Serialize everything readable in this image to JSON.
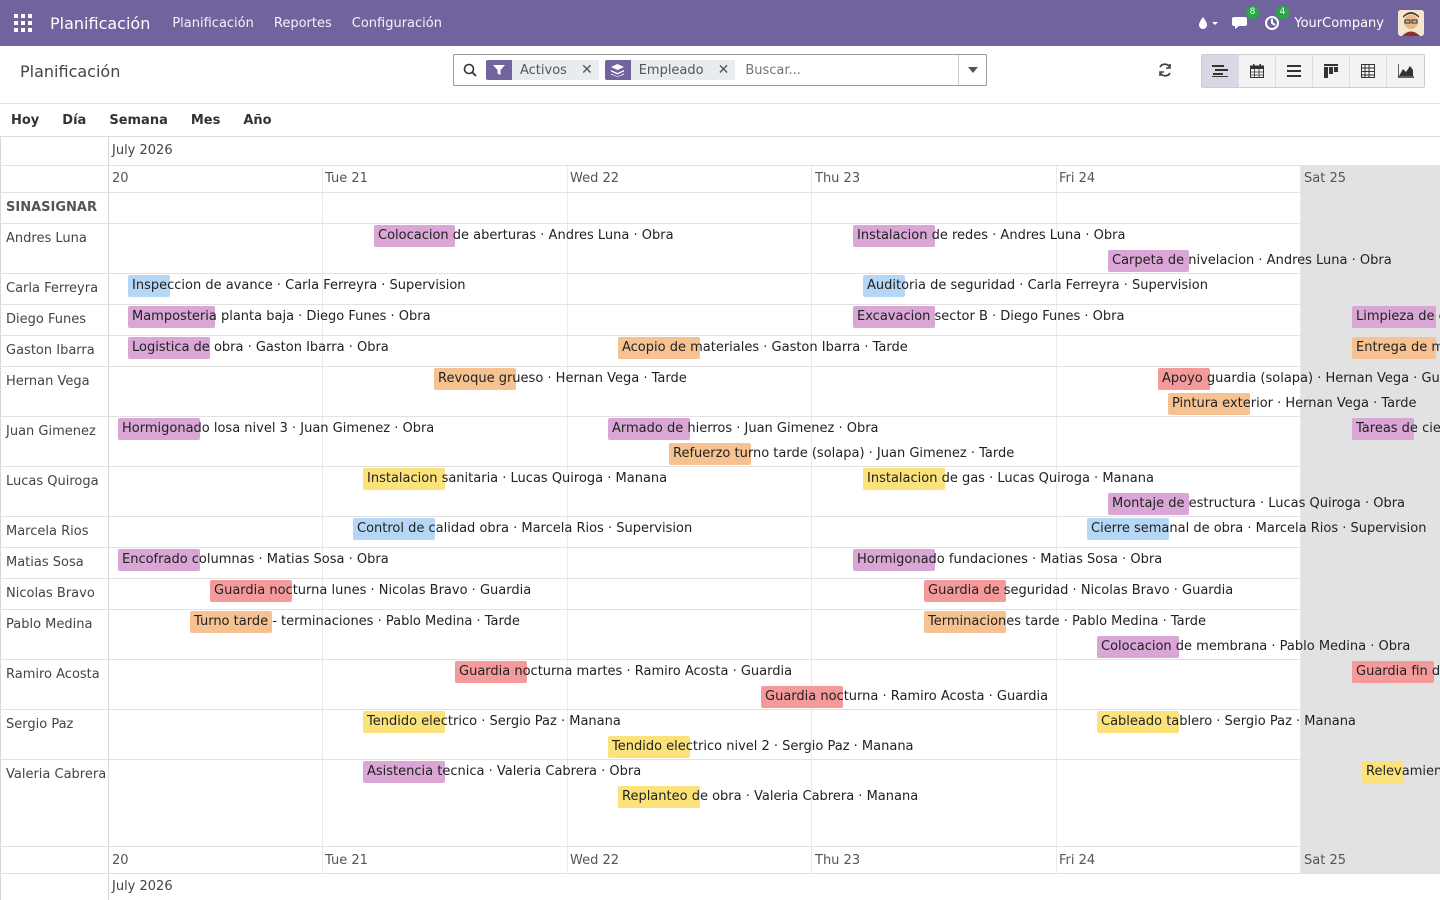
{
  "navbar": {
    "brand": "Planificación",
    "menu": [
      "Planificación",
      "Reportes",
      "Configuración"
    ],
    "company": "YourCompany",
    "messages_badge": "8",
    "activities_badge": "4",
    "color": "#71639e"
  },
  "control_panel": {
    "title": "Planificación",
    "facets": [
      {
        "icon": "filter-icon",
        "label": "Activos"
      },
      {
        "icon": "layers-icon",
        "label": "Empleado"
      }
    ],
    "search_placeholder": "Buscar...",
    "views": [
      "gantt-icon",
      "calendar-icon",
      "list-icon",
      "kanban-icon",
      "pivot-icon",
      "graph-icon"
    ],
    "active_view": "gantt-icon"
  },
  "scales": [
    "Hoy",
    "Día",
    "Semana",
    "Mes",
    "Año"
  ],
  "gantt": {
    "month": "July 2026",
    "days": [
      "20",
      "Tue 21",
      "Wed 22",
      "Thu 23",
      "Fri 24",
      "Sat 25"
    ],
    "rows": [
      "SINASIGNAR",
      "Andres Luna",
      "Carla Ferreyra",
      "Diego Funes",
      "Gaston Ibarra",
      "Hernan Vega",
      "Juan Gimenez",
      "Lucas Quiroga",
      "Marcela Rios",
      "Matias Sosa",
      "Nicolas Bravo",
      "Pablo Medina",
      "Ramiro Acosta",
      "Sergio Paz",
      "Valeria Cabrera"
    ],
    "colors": {
      "purple": "#d9a6d6",
      "blue": "#b6d6f6",
      "orange": "#f6c292",
      "yellow": "#fbe27a",
      "red": "#f49a9a"
    },
    "shifts": [
      {
        "row": 1,
        "lane": 0,
        "color": "purple",
        "text": "Colocacion de aberturas · Andres Luna · Obra"
      },
      {
        "row": 1,
        "lane": 0,
        "color": "purple",
        "text": "Instalacion de redes · Andres Luna · Obra"
      },
      {
        "row": 1,
        "lane": 1,
        "color": "purple",
        "text": "Carpeta de nivelacion · Andres Luna · Obra"
      },
      {
        "row": 2,
        "lane": 0,
        "color": "blue",
        "text": "Inspeccion de avance · Carla Ferreyra · Supervision"
      },
      {
        "row": 2,
        "lane": 0,
        "color": "blue",
        "text": "Auditoria de seguridad · Carla Ferreyra · Supervision"
      },
      {
        "row": 3,
        "lane": 0,
        "color": "purple",
        "text": "Mamposteria planta baja · Diego Funes · Obra"
      },
      {
        "row": 3,
        "lane": 0,
        "color": "purple",
        "text": "Excavacion sector B · Diego Funes · Obra"
      },
      {
        "row": 3,
        "lane": 0,
        "color": "purple",
        "text": "Limpieza de c"
      },
      {
        "row": 4,
        "lane": 0,
        "color": "purple",
        "text": "Logistica de obra · Gaston Ibarra · Obra"
      },
      {
        "row": 4,
        "lane": 0,
        "color": "orange",
        "text": "Acopio de materiales · Gaston Ibarra · Tarde"
      },
      {
        "row": 4,
        "lane": 0,
        "color": "orange",
        "text": "Entrega de m"
      },
      {
        "row": 5,
        "lane": 0,
        "color": "orange",
        "text": "Revoque grueso · Hernan Vega · Tarde"
      },
      {
        "row": 5,
        "lane": 0,
        "color": "red",
        "text": "Apoyo guardia (solapa) · Hernan Vega · Guar"
      },
      {
        "row": 5,
        "lane": 1,
        "color": "orange",
        "text": "Pintura exterior · Hernan Vega · Tarde"
      },
      {
        "row": 6,
        "lane": 0,
        "color": "purple",
        "text": "Hormigonado losa nivel 3 · Juan Gimenez · Obra"
      },
      {
        "row": 6,
        "lane": 0,
        "color": "purple",
        "text": "Armado de hierros · Juan Gimenez · Obra"
      },
      {
        "row": 6,
        "lane": 0,
        "color": "purple",
        "text": "Tareas de cie"
      },
      {
        "row": 6,
        "lane": 1,
        "color": "orange",
        "text": "Refuerzo turno tarde (solapa) · Juan Gimenez · Tarde"
      },
      {
        "row": 7,
        "lane": 0,
        "color": "yellow",
        "text": "Instalacion sanitaria · Lucas Quiroga · Manana"
      },
      {
        "row": 7,
        "lane": 0,
        "color": "yellow",
        "text": "Instalacion de gas · Lucas Quiroga · Manana"
      },
      {
        "row": 7,
        "lane": 1,
        "color": "purple",
        "text": "Montaje de estructura · Lucas Quiroga · Obra"
      },
      {
        "row": 8,
        "lane": 0,
        "color": "blue",
        "text": "Control de calidad obra · Marcela Rios · Supervision"
      },
      {
        "row": 8,
        "lane": 0,
        "color": "blue",
        "text": "Cierre semanal de obra · Marcela Rios · Supervision"
      },
      {
        "row": 9,
        "lane": 0,
        "color": "purple",
        "text": "Encofrado columnas · Matias Sosa · Obra"
      },
      {
        "row": 9,
        "lane": 0,
        "color": "purple",
        "text": "Hormigonado fundaciones · Matias Sosa · Obra"
      },
      {
        "row": 10,
        "lane": 0,
        "color": "red",
        "text": "Guardia nocturna lunes · Nicolas Bravo · Guardia"
      },
      {
        "row": 10,
        "lane": 0,
        "color": "red",
        "text": "Guardia de seguridad · Nicolas Bravo · Guardia"
      },
      {
        "row": 11,
        "lane": 0,
        "color": "orange",
        "text": "Turno tarde - terminaciones · Pablo Medina · Tarde"
      },
      {
        "row": 11,
        "lane": 0,
        "color": "orange",
        "text": "Terminaciones tarde · Pablo Medina · Tarde"
      },
      {
        "row": 11,
        "lane": 1,
        "color": "purple",
        "text": "Colocacion de membrana · Pablo Medina · Obra"
      },
      {
        "row": 12,
        "lane": 0,
        "color": "red",
        "text": "Guardia nocturna martes · Ramiro Acosta · Guardia"
      },
      {
        "row": 12,
        "lane": 0,
        "color": "red",
        "text": "Guardia fin de"
      },
      {
        "row": 12,
        "lane": 1,
        "color": "red",
        "text": "Guardia nocturna · Ramiro Acosta · Guardia"
      },
      {
        "row": 13,
        "lane": 0,
        "color": "yellow",
        "text": "Tendido electrico · Sergio Paz · Manana"
      },
      {
        "row": 13,
        "lane": 0,
        "color": "yellow",
        "text": "Cableado tablero · Sergio Paz · Manana"
      },
      {
        "row": 13,
        "lane": 1,
        "color": "yellow",
        "text": "Tendido electrico nivel 2 · Sergio Paz · Manana"
      },
      {
        "row": 14,
        "lane": 0,
        "color": "purple",
        "text": "Asistencia tecnica · Valeria Cabrera · Obra"
      },
      {
        "row": 14,
        "lane": 0,
        "color": "yellow",
        "text": "Relevamien"
      },
      {
        "row": 14,
        "lane": 1,
        "color": "yellow",
        "text": "Replanteo de obra · Valeria Cabrera · Manana"
      }
    ]
  }
}
